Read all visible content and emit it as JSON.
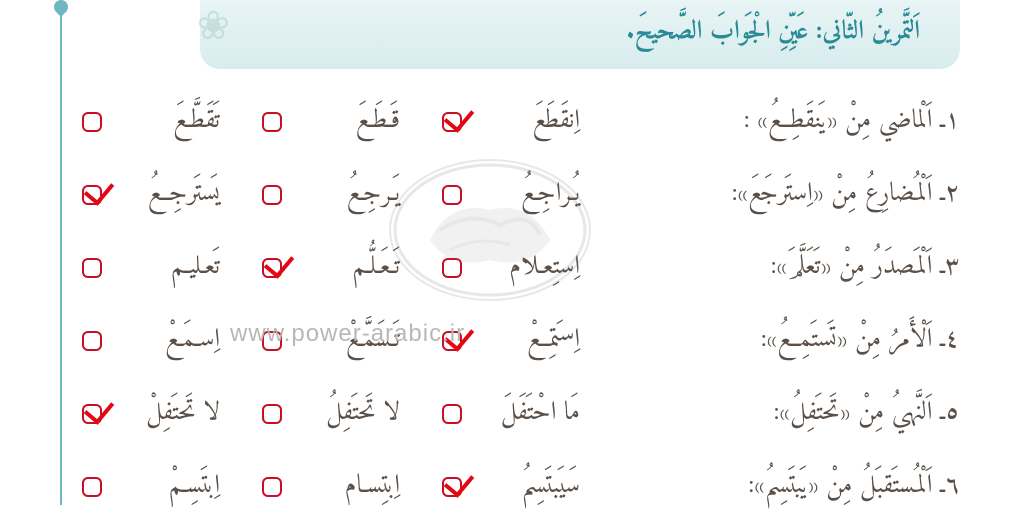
{
  "header": {
    "title": "اَلتَّمرينُ الثّاني: عَيِّنِ الْجَوابَ الصَّحيحَ.",
    "bg_gradient_top": "#e8f4f5",
    "bg_gradient_bottom": "#d8ecee",
    "text_color": "#2a8b96"
  },
  "rows": [
    {
      "q": "١ـ اَلْماضي مِنْ «يَنقَطِعُ» :",
      "opts": [
        {
          "text": "اِنقَطَعَ",
          "checked": true
        },
        {
          "text": "قَـطَـعَ",
          "checked": false
        },
        {
          "text": "تَقَطَّـعَ",
          "checked": false
        }
      ]
    },
    {
      "q": "٢ـ اَلْمُضارِعُ مِنْ «اِستَرجَعَ»:",
      "opts": [
        {
          "text": "يُـراجِـعُ",
          "checked": false
        },
        {
          "text": "يَـرجِـعُ",
          "checked": false
        },
        {
          "text": "يَستَرجِعُ",
          "checked": true
        }
      ]
    },
    {
      "q": "٣ـ اَلْمَصدَرُ مِنْ «تَعَلَّمَ»:",
      "opts": [
        {
          "text": "اِستِعـلام",
          "checked": false
        },
        {
          "text": "تَـعَـلُّـم",
          "checked": true
        },
        {
          "text": "تَعـليـم",
          "checked": false
        }
      ]
    },
    {
      "q": "٤ـ اَلْأَمرُ مِنْ «تَستَمِعُ»:",
      "opts": [
        {
          "text": "اِستَمِعْ",
          "checked": true
        },
        {
          "text": "تَـسَمَّـعْ",
          "checked": false
        },
        {
          "text": "اِسـمَـعْ",
          "checked": false
        }
      ]
    },
    {
      "q": "٥ـ اَلنَّهيُ مِنْ «تَحتَفِلُ»:",
      "opts": [
        {
          "text": "مَا احْتَفَلَ",
          "checked": false
        },
        {
          "text": "لا تَحتَفِلُ",
          "checked": false
        },
        {
          "text": "لا تَحتَفِلْ",
          "checked": true
        }
      ]
    },
    {
      "q": "٦ـ اَلْمُستَقبَلُ مِنْ «يَبتَسِمُ»:",
      "opts": [
        {
          "text": "سَيَبتَسِمُ",
          "checked": true
        },
        {
          "text": "اِبتِسـام",
          "checked": false
        },
        {
          "text": "اِبتَسِـمْ",
          "checked": false
        }
      ]
    }
  ],
  "watermark": {
    "url": "www.power-arabic.ir",
    "url_color": "#b8b8b8",
    "seal_color": "#808080"
  },
  "colors": {
    "text": "#5a5048",
    "checkbox_border": "#c71025",
    "checkmark": "#e30613",
    "border_line": "#6fb8c1",
    "background": "#ffffff"
  }
}
